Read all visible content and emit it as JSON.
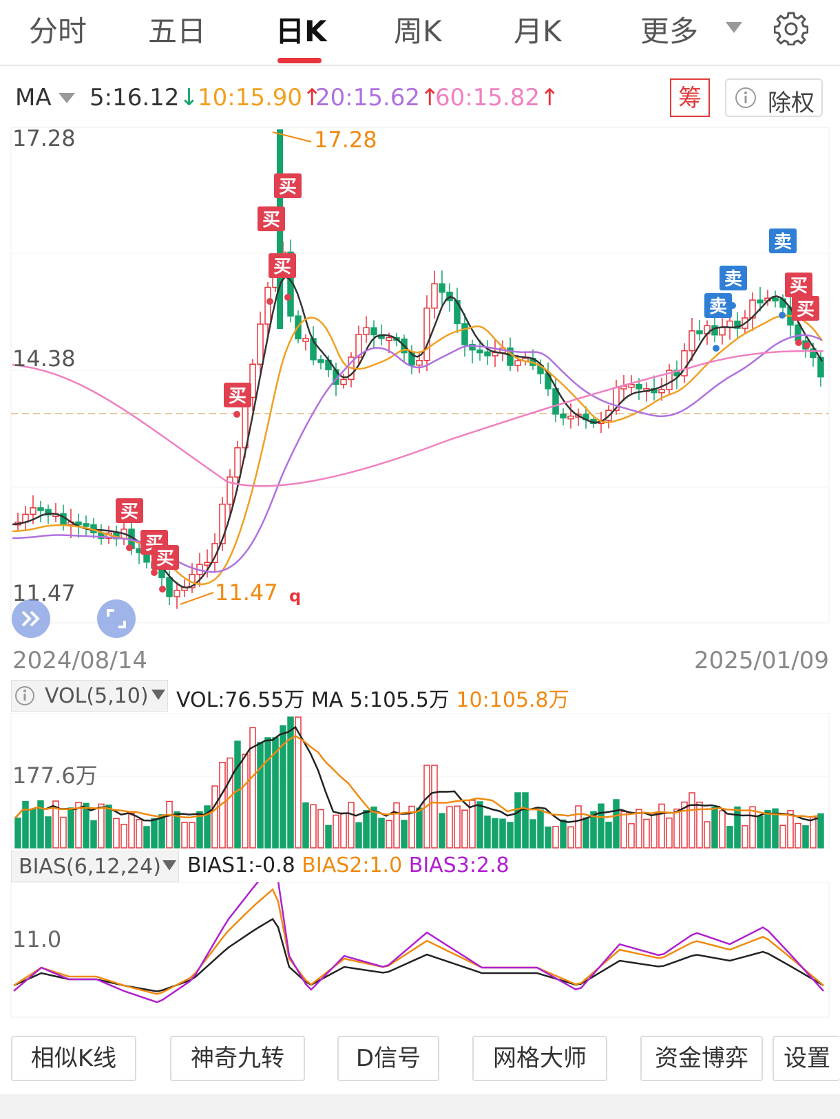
{
  "tabs": [
    "分时",
    "五日",
    "日K",
    "周K",
    "月K",
    "更多"
  ],
  "active_tab": "日K",
  "ma_indicator": {
    "label": "MA",
    "ma5": "5:16.12",
    "ma10": "10:15.90",
    "ma20": "20:15.62",
    "ma60": "60:15.82",
    "colors": {
      "ma5": "#333333",
      "ma10": "#f0a020",
      "ma20": "#b070e0",
      "ma60": "#f080c0"
    }
  },
  "chou_button": "筹",
  "chuquan_button": "除权",
  "price_chart": {
    "y_high": "17.28",
    "y_mid": "14.38",
    "y_low": "11.47",
    "high_marker": "17.28",
    "low_marker": "11.47",
    "start_date": "2024/08/14",
    "end_date": "2025/01/09",
    "buy_label": "买",
    "sell_label": "卖",
    "q_label": "q"
  },
  "volume": {
    "selector": "VOL(5,10)",
    "vol_text": "VOL:76.55万",
    "ma5_text": "MA 5:105.5万",
    "ma10_text": "10:105.8万",
    "axis_label": "177.6万"
  },
  "bias": {
    "selector": "BIAS(6,12,24)",
    "bias1": "BIAS1:-0.8",
    "bias2": "BIAS2:1.0",
    "bias3": "BIAS3:2.8",
    "axis_label": "11.0"
  },
  "bottom_buttons": [
    "相似K线",
    "神奇九转",
    "D信号",
    "网格大师",
    "资金博弈",
    "设置"
  ],
  "colors": {
    "up": "#e8333a",
    "down": "#14a36b",
    "accent": "#e8333a",
    "orange": "#f08a10",
    "purple": "#b020d0"
  }
}
